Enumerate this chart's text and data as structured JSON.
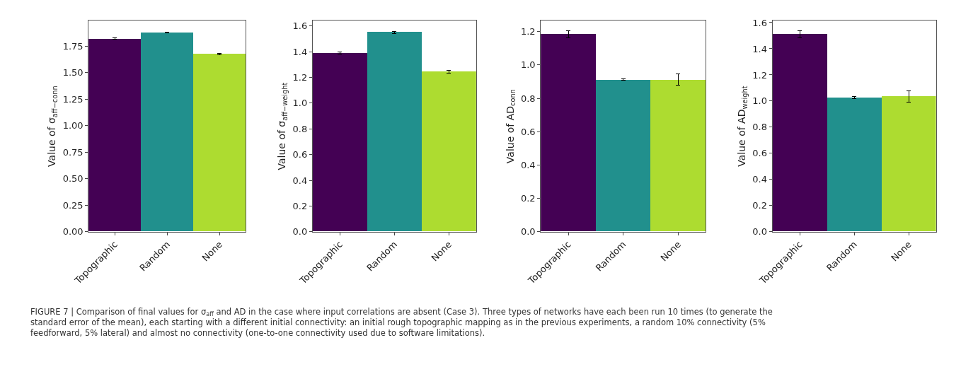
{
  "chart_data": [
    {
      "type": "bar",
      "categories": [
        "Topographic",
        "Random",
        "None"
      ],
      "values": [
        1.82,
        1.88,
        1.675
      ],
      "colors": [
        "#440154",
        "#21908d",
        "#addc30"
      ],
      "errors": [
        0.006,
        0.004,
        0.006
      ],
      "ylabel": "Value of σ$_{aff−conn}$",
      "ylim": [
        0,
        1.99
      ],
      "yticks": [
        {
          "value": 0,
          "label": "0.00"
        },
        {
          "value": 0.25,
          "label": "0.25"
        },
        {
          "value": 0.5,
          "label": "0.50"
        },
        {
          "value": 0.75,
          "label": "0.75"
        },
        {
          "value": 1,
          "label": "1.00"
        },
        {
          "value": 1.25,
          "label": "1.25"
        },
        {
          "value": 1.5,
          "label": "1.50"
        },
        {
          "value": 1.75,
          "label": "1.75"
        }
      ]
    },
    {
      "type": "bar",
      "categories": [
        "Topographic",
        "Random",
        "None"
      ],
      "values": [
        1.39,
        1.55,
        1.245
      ],
      "colors": [
        "#440154",
        "#21908d",
        "#addc30"
      ],
      "errors": [
        0.01,
        0.007,
        0.01
      ],
      "ylabel": "Value of σ$_{aff−weight}$",
      "ylim": [
        0,
        1.64
      ],
      "yticks": [
        {
          "value": 0,
          "label": "0.0"
        },
        0.2,
        0.4,
        0.6,
        0.8,
        {
          "value": 1,
          "label": "1.0"
        },
        1.2,
        1.4,
        1.6
      ]
    },
    {
      "type": "bar",
      "categories": [
        "Topographic",
        "Random",
        "None"
      ],
      "values": [
        1.183,
        0.911,
        0.911
      ],
      "colors": [
        "#440154",
        "#21908d",
        "#addc30"
      ],
      "errors": [
        0.022,
        0.004,
        0.034
      ],
      "ylabel": "Value of AD$_{conn}$",
      "ylim": [
        0,
        1.265
      ],
      "yticks": [
        {
          "value": 0,
          "label": "0.0"
        },
        0.2,
        0.4,
        0.6,
        0.8,
        {
          "value": 1,
          "label": "1.0"
        },
        1.2
      ]
    },
    {
      "type": "bar",
      "categories": [
        "Topographic",
        "Random",
        "None"
      ],
      "values": [
        1.511,
        1.027,
        1.034
      ],
      "colors": [
        "#440154",
        "#21908d",
        "#addc30"
      ],
      "errors": [
        0.026,
        0.01,
        0.043
      ],
      "ylabel": "Value of AD$_{weight}$",
      "ylim": [
        0,
        1.614
      ],
      "yticks": [
        {
          "value": 0,
          "label": "0.0"
        },
        0.2,
        0.4,
        0.6,
        0.8,
        {
          "value": 1,
          "label": "1.0"
        },
        1.2,
        1.4,
        1.6
      ],
      "annotations": [
        "FIGURE 7 | Comparison of final values for σ$_{aff}$ and AD in the case where input correlations are absent (Case 3). Three types of networks have each been run 10 times (to generate the standard error of the mean), each starting with a different initial connectivity: an initial rough topographic mapping as in the previous experiments, a random 10% connectivity (5% feedforward, 5% lateral) and almost no connectivity (one-to-one connectivity used due to software limitations)."
      ]
    }
  ]
}
